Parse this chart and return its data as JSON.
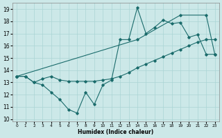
{
  "xlabel": "Humidex (Indice chaleur)",
  "bg_color": "#cce8e8",
  "grid_color": "#aad4d4",
  "line_color": "#1a6b6b",
  "xlim": [
    -0.5,
    23.5
  ],
  "ylim": [
    9.8,
    19.5
  ],
  "yticks": [
    10,
    11,
    12,
    13,
    14,
    15,
    16,
    17,
    18,
    19
  ],
  "xticks": [
    0,
    1,
    2,
    3,
    4,
    5,
    6,
    7,
    8,
    9,
    10,
    11,
    12,
    13,
    14,
    15,
    16,
    17,
    18,
    19,
    20,
    21,
    22,
    23
  ],
  "series1_x": [
    0,
    1,
    2,
    3,
    4,
    5,
    6,
    7,
    8,
    9,
    10,
    11,
    12,
    13,
    14,
    15,
    16,
    17,
    18,
    19,
    20,
    21,
    22,
    23
  ],
  "series1_y": [
    13.5,
    13.5,
    13.0,
    12.8,
    12.2,
    11.6,
    10.8,
    10.5,
    12.2,
    11.2,
    12.8,
    13.2,
    16.5,
    16.5,
    19.1,
    17.0,
    17.5,
    18.1,
    17.8,
    17.9,
    16.7,
    16.9,
    15.3,
    15.3
  ],
  "series2_x": [
    0,
    1,
    2,
    3,
    4,
    5,
    6,
    7,
    8,
    9,
    10,
    11,
    12,
    13,
    14,
    15,
    16,
    17,
    18,
    19,
    20,
    21,
    22,
    23
  ],
  "series2_y": [
    13.5,
    13.5,
    13.0,
    13.3,
    13.5,
    13.2,
    13.1,
    13.1,
    13.1,
    13.1,
    13.2,
    13.3,
    13.5,
    13.8,
    14.2,
    14.5,
    14.8,
    15.1,
    15.4,
    15.7,
    16.0,
    16.3,
    16.5,
    16.5
  ],
  "series3_x": [
    0,
    14,
    19,
    22,
    23
  ],
  "series3_y": [
    13.5,
    16.5,
    18.5,
    18.5,
    15.3
  ]
}
